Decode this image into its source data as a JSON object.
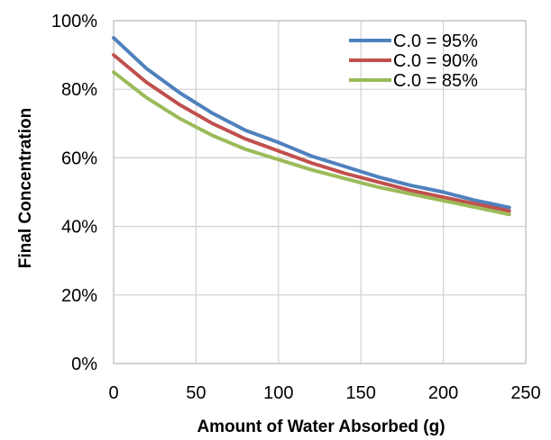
{
  "chart_data": {
    "type": "line",
    "title": "",
    "xlabel": "Amount of Water Absorbed (g)",
    "ylabel": "Final Concentration",
    "xlim": [
      0,
      250
    ],
    "ylim": [
      0,
      1.0
    ],
    "x_ticks": [
      0,
      50,
      100,
      150,
      200,
      250
    ],
    "x_tick_labels": [
      "0",
      "50",
      "100",
      "150",
      "200",
      "250"
    ],
    "y_ticks": [
      0,
      0.2,
      0.4,
      0.6,
      0.8,
      1.0
    ],
    "y_tick_labels": [
      "0%",
      "20%",
      "40%",
      "60%",
      "80%",
      "100%"
    ],
    "grid": true,
    "legend_position": "top-right",
    "x": [
      0,
      20,
      40,
      60,
      80,
      100,
      120,
      140,
      160,
      180,
      200,
      220,
      240
    ],
    "series": [
      {
        "name": "C.0 = 95%",
        "color": "#4f81bd",
        "values": [
          0.95,
          0.86,
          0.79,
          0.73,
          0.68,
          0.645,
          0.605,
          0.575,
          0.545,
          0.52,
          0.5,
          0.475,
          0.455
        ]
      },
      {
        "name": "C.0 = 90%",
        "color": "#c0504d",
        "values": [
          0.9,
          0.82,
          0.755,
          0.7,
          0.655,
          0.62,
          0.585,
          0.555,
          0.53,
          0.505,
          0.485,
          0.465,
          0.445
        ]
      },
      {
        "name": "C.0 = 85%",
        "color": "#9bbb59",
        "values": [
          0.85,
          0.775,
          0.715,
          0.665,
          0.625,
          0.595,
          0.565,
          0.54,
          0.515,
          0.495,
          0.475,
          0.455,
          0.435
        ]
      }
    ]
  }
}
